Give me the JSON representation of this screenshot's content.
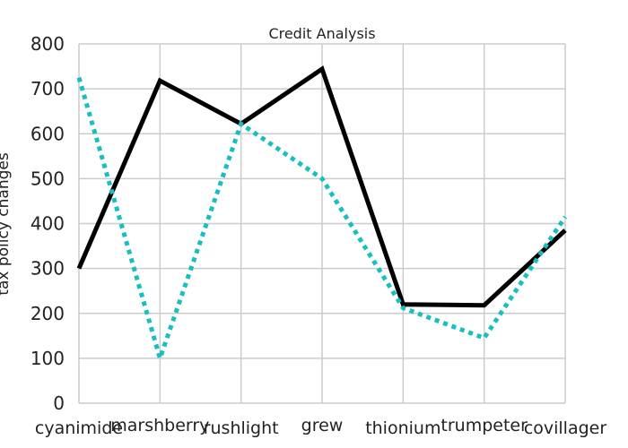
{
  "chart_data": {
    "type": "line",
    "title": "Credit Analysis",
    "xlabel": "",
    "ylabel": "tax policy changes",
    "categories": [
      "cyanimide",
      "marshberry",
      "rushlight",
      "grew",
      "thionium",
      "trumpeter",
      "covillager"
    ],
    "ylim": [
      0,
      800
    ],
    "yticks": [
      0,
      100,
      200,
      300,
      400,
      500,
      600,
      700,
      800
    ],
    "grid": true,
    "legend": "none",
    "series": [
      {
        "values": [
          300,
          718,
          622,
          744,
          220,
          218,
          385
        ],
        "color": "#000000",
        "style": "solid"
      },
      {
        "values": [
          725,
          100,
          622,
          500,
          212,
          145,
          415
        ],
        "color": "#17bfbf",
        "style": "dotted"
      }
    ]
  }
}
